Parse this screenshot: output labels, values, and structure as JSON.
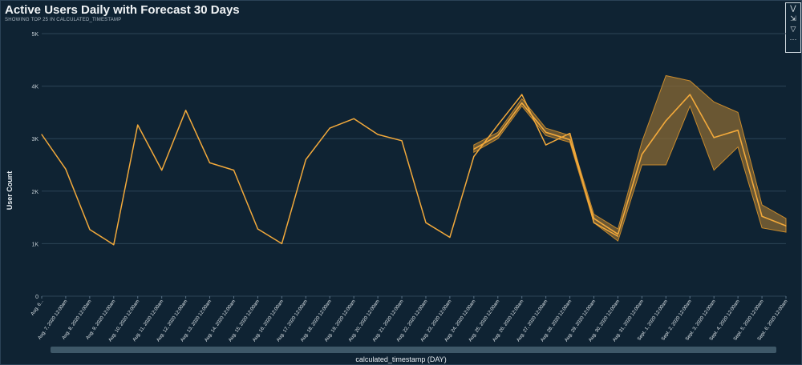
{
  "header": {
    "title": "Active Users Daily with Forecast 30 Days",
    "subtitle": "SHOWING TOP 25 IN CALCULATED_TIMESTAMP"
  },
  "toolbar": {
    "icons": [
      "expand-icon",
      "focus-icon",
      "filter-icon",
      "more-icon"
    ]
  },
  "colors": {
    "background": "#0f2333",
    "line": "#f2a93b",
    "band": "#8a6a34",
    "grid": "#2c4457"
  },
  "chart_data": {
    "type": "line",
    "title": "Active Users Daily with Forecast 30 Days",
    "subtitle": "SHOWING TOP 25 IN CALCULATED_TIMESTAMP",
    "xlabel": "calculated_timestamp (DAY)",
    "ylabel": "User Count",
    "ylim": [
      0,
      5
    ],
    "y_ticks": [
      "0",
      "1K",
      "2K",
      "3K",
      "4K",
      "5K"
    ],
    "categories": [
      "Aug. 6...",
      "Aug. 7, 2020 12:00am",
      "Aug. 8, 2020 12:00am",
      "Aug. 9, 2020 12:00am",
      "Aug. 10, 2020 12:00am",
      "Aug. 11, 2020 12:00am",
      "Aug. 12, 2020 12:00am",
      "Aug. 13, 2020 12:00am",
      "Aug. 14, 2020 12:00am",
      "Aug. 15, 2020 12:00am",
      "Aug. 16, 2020 12:00am",
      "Aug. 17, 2020 12:00am",
      "Aug. 18, 2020 12:00am",
      "Aug. 19, 2020 12:00am",
      "Aug. 20, 2020 12:00am",
      "Aug. 21, 2020 12:00am",
      "Aug. 22, 2020 12:00am",
      "Aug. 23, 2020 12:00am",
      "Aug. 24, 2020 12:00am",
      "Aug. 25, 2020 12:00am",
      "Aug. 26, 2020 12:00am",
      "Aug. 27, 2020 12:00am",
      "Aug. 28, 2020 12:00am",
      "Aug. 29, 2020 12:00am",
      "Aug. 30, 2020 12:00am",
      "Aug. 31, 2020 12:00am",
      "Sept. 1, 2020 12:00am",
      "Sept. 2, 2020 12:00am",
      "Sept. 3, 2020 12:00am",
      "Sept. 4, 2020 12:00am",
      "Sept. 5, 2020 12:00am",
      "Sept. 6, 2020 12:00am"
    ],
    "series": [
      {
        "values": [
          3.08,
          2.42,
          1.27,
          0.98,
          3.26,
          2.4,
          3.54,
          2.54,
          2.4,
          1.28,
          1.0,
          2.6,
          3.2,
          3.38,
          3.08,
          2.96,
          1.4,
          1.12,
          2.66,
          3.26,
          3.84,
          2.88,
          3.1,
          1.4,
          1.14,
          null,
          null,
          null,
          null,
          null,
          null,
          null
        ]
      },
      {
        "values": [
          null,
          null,
          null,
          null,
          null,
          null,
          null,
          null,
          null,
          null,
          null,
          null,
          null,
          null,
          null,
          null,
          null,
          null,
          2.8,
          3.06,
          3.68,
          3.12,
          2.98,
          1.48,
          1.18,
          2.7,
          3.34,
          3.84,
          3.02,
          3.16,
          1.52,
          1.34
        ]
      }
    ],
    "forecast_band": {
      "lower": [
        null,
        null,
        null,
        null,
        null,
        null,
        null,
        null,
        null,
        null,
        null,
        null,
        null,
        null,
        null,
        null,
        null,
        null,
        2.74,
        3.0,
        3.62,
        3.06,
        2.93,
        1.4,
        1.05,
        2.5,
        2.5,
        3.62,
        2.4,
        2.84,
        1.3,
        1.22
      ],
      "upper": [
        null,
        null,
        null,
        null,
        null,
        null,
        null,
        null,
        null,
        null,
        null,
        null,
        null,
        null,
        null,
        null,
        null,
        null,
        2.88,
        3.12,
        3.76,
        3.2,
        3.06,
        1.56,
        1.28,
        2.94,
        4.2,
        4.1,
        3.7,
        3.5,
        1.74,
        1.48
      ]
    }
  }
}
